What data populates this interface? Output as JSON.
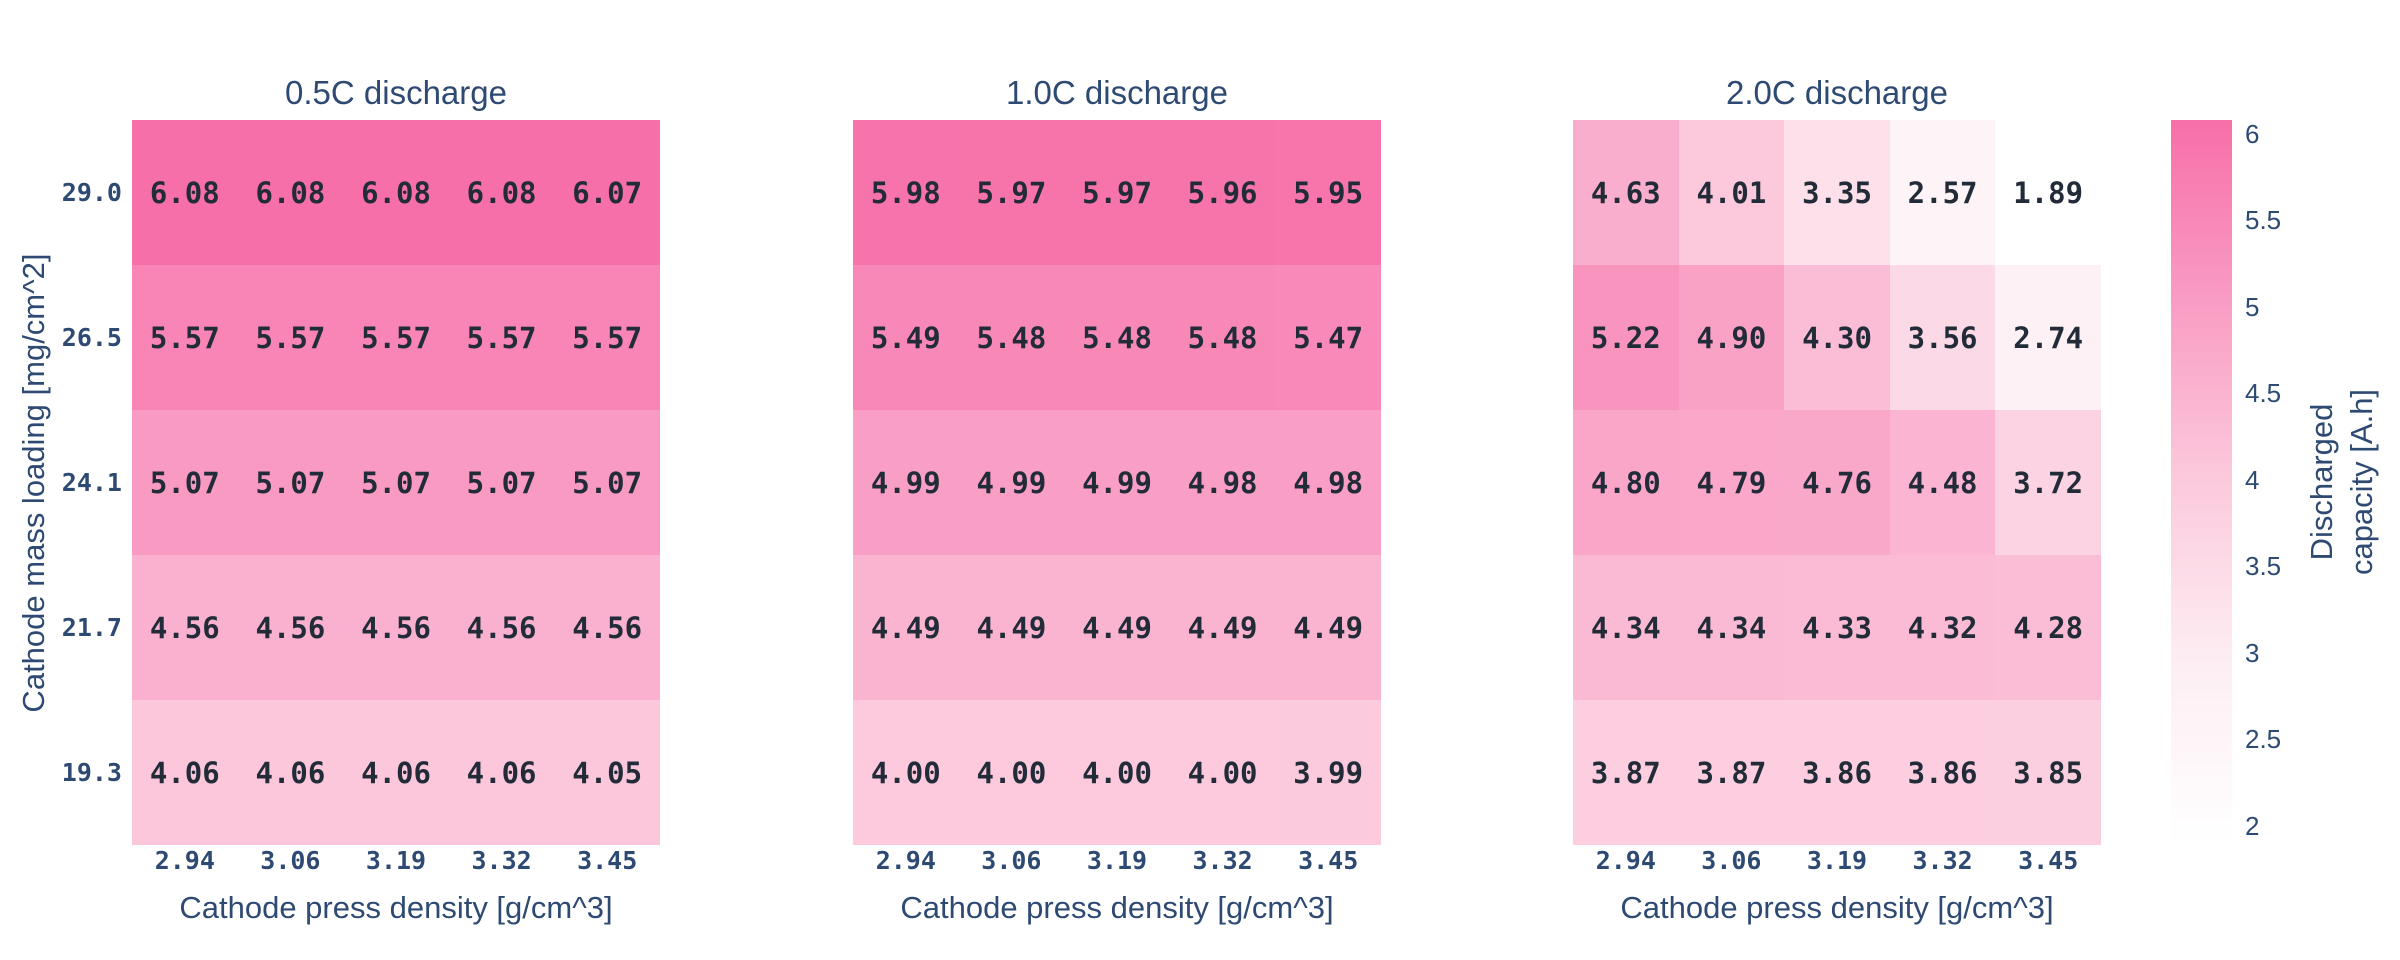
{
  "figure": {
    "background": "#ffffff",
    "accent_text_color": "#2e4a73",
    "cell_text_color": "#222b38"
  },
  "colorbar": {
    "title": "Discharged capacity [A.h]",
    "title_lines": [
      "Discharged",
      "capacity [A.h]"
    ],
    "tick_labels": [
      "6",
      "5.5",
      "5",
      "4.5",
      "4",
      "3.5",
      "3",
      "2.5",
      "2"
    ],
    "tick_values": [
      6,
      5.5,
      5,
      4.5,
      4,
      3.5,
      3,
      2.5,
      2
    ],
    "zmin": 1.89,
    "zmax": 6.08,
    "colorscale": [
      [
        0.0,
        "#ffffff"
      ],
      [
        0.25,
        "#fdeef3"
      ],
      [
        0.5,
        "#fccadd"
      ],
      [
        0.75,
        "#f99cc3"
      ],
      [
        1.0,
        "#f76fa8"
      ]
    ]
  },
  "chart_data": [
    {
      "type": "heatmap",
      "title": "0.5C discharge",
      "xlabel": "Cathode press density [g/cm^3]",
      "ylabel": "Cathode mass loading [mg/cm^2]",
      "legend_title": "Discharged capacity [A.h]",
      "x": [
        "2.94",
        "3.06",
        "3.19",
        "3.32",
        "3.45"
      ],
      "y": [
        "29.0",
        "26.5",
        "24.1",
        "21.7",
        "19.3"
      ],
      "z": [
        [
          6.08,
          6.08,
          6.08,
          6.08,
          6.07
        ],
        [
          5.57,
          5.57,
          5.57,
          5.57,
          5.57
        ],
        [
          5.07,
          5.07,
          5.07,
          5.07,
          5.07
        ],
        [
          4.56,
          4.56,
          4.56,
          4.56,
          4.56
        ],
        [
          4.06,
          4.06,
          4.06,
          4.06,
          4.05
        ]
      ]
    },
    {
      "type": "heatmap",
      "title": "1.0C discharge",
      "xlabel": "Cathode press density [g/cm^3]",
      "ylabel": "Cathode mass loading [mg/cm^2]",
      "legend_title": "Discharged capacity [A.h]",
      "x": [
        "2.94",
        "3.06",
        "3.19",
        "3.32",
        "3.45"
      ],
      "y": [
        "29.0",
        "26.5",
        "24.1",
        "21.7",
        "19.3"
      ],
      "z": [
        [
          5.98,
          5.97,
          5.97,
          5.96,
          5.95
        ],
        [
          5.49,
          5.48,
          5.48,
          5.48,
          5.47
        ],
        [
          4.99,
          4.99,
          4.99,
          4.98,
          4.98
        ],
        [
          4.49,
          4.49,
          4.49,
          4.49,
          4.49
        ],
        [
          4.0,
          4.0,
          4.0,
          4.0,
          3.99
        ]
      ]
    },
    {
      "type": "heatmap",
      "title": "2.0C discharge",
      "xlabel": "Cathode press density [g/cm^3]",
      "ylabel": "Cathode mass loading [mg/cm^2]",
      "legend_title": "Discharged capacity [A.h]",
      "x": [
        "2.94",
        "3.06",
        "3.19",
        "3.32",
        "3.45"
      ],
      "y": [
        "29.0",
        "26.5",
        "24.1",
        "21.7",
        "19.3"
      ],
      "z": [
        [
          4.63,
          4.01,
          3.35,
          2.57,
          1.89
        ],
        [
          5.22,
          4.9,
          4.3,
          3.56,
          2.74
        ],
        [
          4.8,
          4.79,
          4.76,
          4.48,
          3.72
        ],
        [
          4.34,
          4.34,
          4.33,
          4.32,
          4.28
        ],
        [
          3.87,
          3.87,
          3.86,
          3.86,
          3.85
        ]
      ]
    }
  ]
}
